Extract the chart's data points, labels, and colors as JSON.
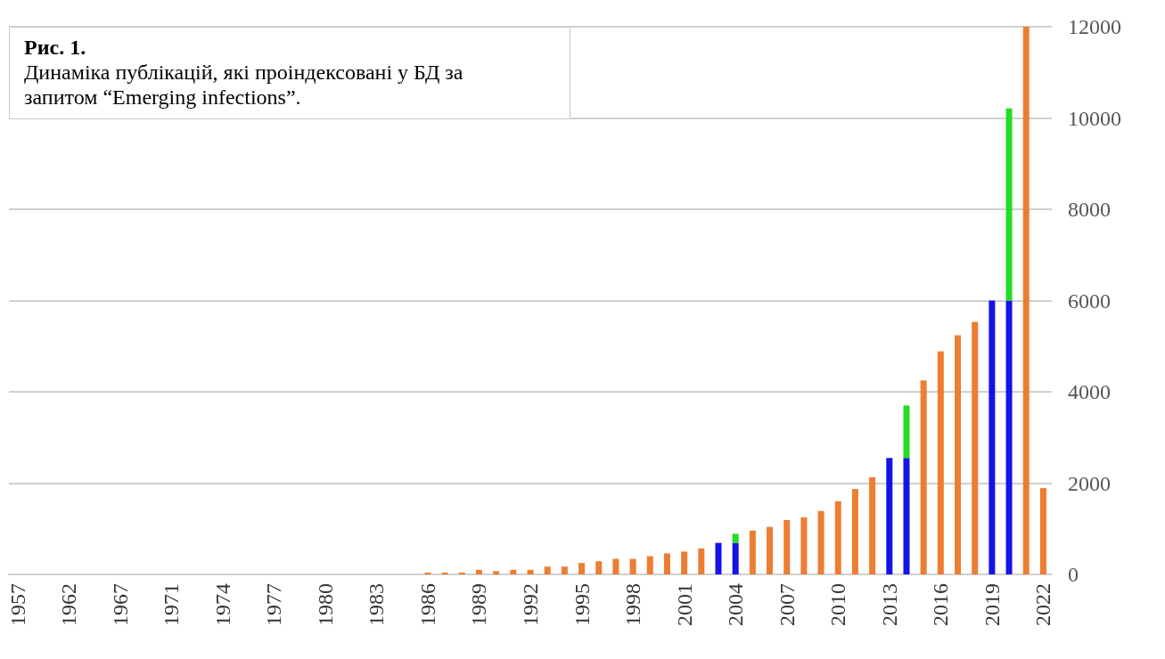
{
  "chart_data": {
    "type": "bar",
    "title": "Рис. 1.",
    "subtitle": "Динаміка публікацій, які проіндексовані у БД за запитом “Emerging infections”.",
    "categories": [
      "1957",
      null,
      null,
      "1962",
      null,
      null,
      "1967",
      null,
      null,
      "1971",
      null,
      null,
      "1974",
      null,
      null,
      "1977",
      null,
      null,
      "1980",
      null,
      null,
      "1983",
      null,
      null,
      "1986",
      null,
      null,
      "1989",
      null,
      null,
      "1992",
      null,
      null,
      "1995",
      null,
      null,
      "1998",
      null,
      null,
      "2001",
      null,
      null,
      "2004",
      null,
      null,
      "2007",
      null,
      null,
      "2010",
      null,
      null,
      "2013",
      null,
      null,
      "2016",
      null,
      null,
      "2019",
      null,
      null,
      "2022"
    ],
    "stacked": true,
    "series": [
      {
        "values": [
          0,
          0,
          0,
          0,
          0,
          0,
          0,
          0,
          0,
          0,
          0,
          0,
          0,
          0,
          0,
          0,
          0,
          0,
          0,
          0,
          0,
          0,
          0,
          0,
          40,
          40,
          40,
          100,
          70,
          100,
          100,
          170,
          170,
          250,
          290,
          340,
          340,
          400,
          460,
          500,
          570,
          690,
          690,
          960,
          1040,
          1190,
          1250,
          1390,
          1600,
          1870,
          2130,
          2550,
          2550,
          4250,
          4890,
          5240,
          5530,
          6000,
          6000,
          12000,
          1890
        ],
        "colors": [
          "#ed7d31",
          "#ed7d31",
          "#ed7d31",
          "#ed7d31",
          "#ed7d31",
          "#ed7d31",
          "#ed7d31",
          "#ed7d31",
          "#ed7d31",
          "#ed7d31",
          "#ed7d31",
          "#ed7d31",
          "#ed7d31",
          "#ed7d31",
          "#ed7d31",
          "#ed7d31",
          "#ed7d31",
          "#ed7d31",
          "#ed7d31",
          "#ed7d31",
          "#ed7d31",
          "#ed7d31",
          "#ed7d31",
          "#ed7d31",
          "#ed7d31",
          "#ed7d31",
          "#ed7d31",
          "#ed7d31",
          "#ed7d31",
          "#ed7d31",
          "#ed7d31",
          "#ed7d31",
          "#ed7d31",
          "#ed7d31",
          "#ed7d31",
          "#ed7d31",
          "#ed7d31",
          "#ed7d31",
          "#ed7d31",
          "#ed7d31",
          "#ed7d31",
          "#1414e6",
          "#1414e6",
          "#ed7d31",
          "#ed7d31",
          "#ed7d31",
          "#ed7d31",
          "#ed7d31",
          "#ed7d31",
          "#ed7d31",
          "#ed7d31",
          "#1414e6",
          "#1414e6",
          "#ed7d31",
          "#ed7d31",
          "#ed7d31",
          "#ed7d31",
          "#1414e6",
          "#1414e6",
          "#ed7d31",
          "#ed7d31"
        ]
      },
      {
        "color": "#22dd22",
        "values": [
          null,
          null,
          null,
          null,
          null,
          null,
          null,
          null,
          null,
          null,
          null,
          null,
          null,
          null,
          null,
          null,
          null,
          null,
          null,
          null,
          null,
          null,
          null,
          null,
          null,
          null,
          null,
          null,
          null,
          null,
          null,
          null,
          null,
          null,
          null,
          null,
          null,
          null,
          null,
          null,
          null,
          null,
          200,
          null,
          null,
          null,
          null,
          null,
          null,
          null,
          null,
          null,
          1150,
          null,
          null,
          null,
          null,
          null,
          4210,
          null,
          null
        ]
      }
    ],
    "ylim": [
      0,
      12000
    ],
    "yticks": [
      0,
      2000,
      4000,
      6000,
      8000,
      10000,
      12000
    ],
    "grid": "y"
  }
}
